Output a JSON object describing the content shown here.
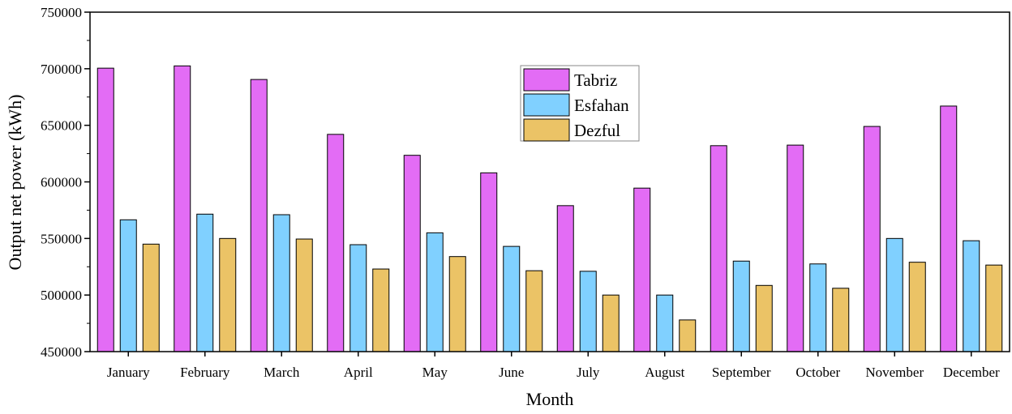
{
  "chart_data": {
    "type": "bar",
    "x_label": "Month",
    "y_label": "Output net power (kWh)",
    "categories": [
      "January",
      "February",
      "March",
      "April",
      "May",
      "June",
      "July",
      "August",
      "September",
      "October",
      "November",
      "December"
    ],
    "series": [
      {
        "name": "Tabriz",
        "color": "#e36cf5",
        "values": [
          700500,
          702500,
          690500,
          642000,
          623500,
          608000,
          579000,
          594500,
          632000,
          632500,
          649000,
          667000
        ]
      },
      {
        "name": "Esfahan",
        "color": "#80d0ff",
        "values": [
          566500,
          571500,
          571000,
          544500,
          555000,
          543000,
          521000,
          500000,
          530000,
          527500,
          550000,
          548000
        ]
      },
      {
        "name": "Dezful",
        "color": "#ebc366",
        "values": [
          545000,
          550000,
          549500,
          523000,
          534000,
          521500,
          500000,
          478000,
          508500,
          506000,
          529000,
          526500
        ]
      }
    ],
    "ylim": [
      450000,
      750000
    ],
    "yticks": [
      450000,
      500000,
      550000,
      600000,
      650000,
      700000,
      750000
    ],
    "legend": "top-center"
  }
}
